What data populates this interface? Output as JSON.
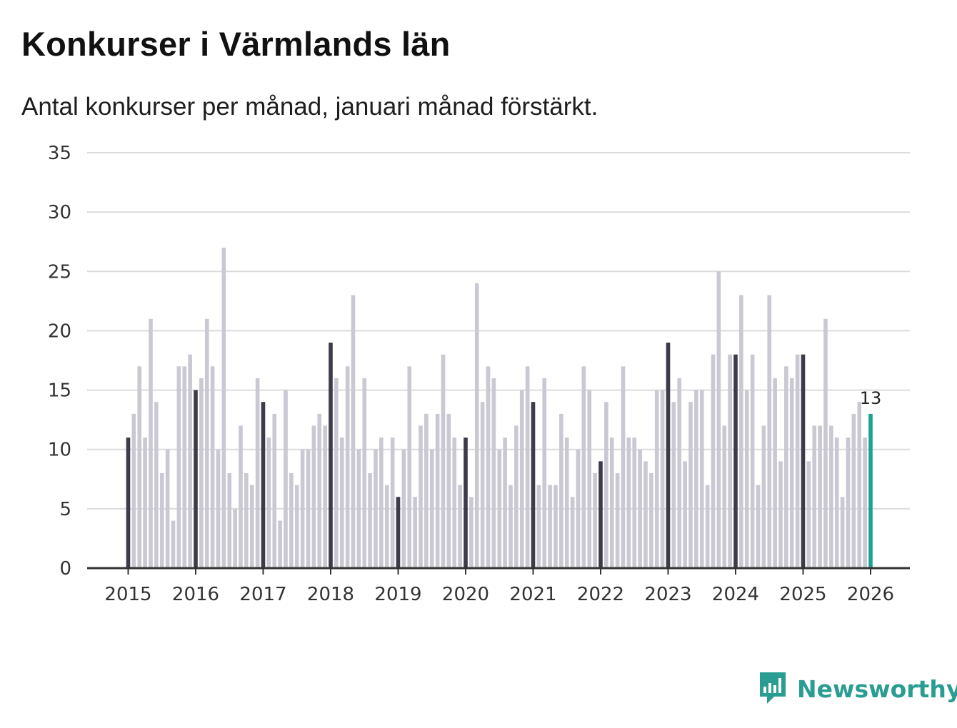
{
  "title": "Konkurser i Värmlands län",
  "subtitle": "Antal konkurser per månad, januari månad förstärkt.",
  "brand": {
    "name": "Newsworthy",
    "icon": "newsworthy-logo-icon"
  },
  "colors": {
    "bar": "#c9c8d3",
    "january": "#3c3b4a",
    "latest": "#1aa394",
    "grid": "#dcdcdc",
    "axis": "#333333",
    "brand": "#2a9d92"
  },
  "chart_data": {
    "type": "bar",
    "title": "Konkurser i Värmlands län",
    "ylabel": "",
    "xlabel": "",
    "ylim": [
      0,
      35
    ],
    "yticks": [
      0,
      5,
      10,
      15,
      20,
      25,
      30,
      35
    ],
    "xticks": [
      "2015",
      "2016",
      "2017",
      "2018",
      "2019",
      "2020",
      "2021",
      "2022",
      "2023",
      "2024",
      "2025",
      "2026"
    ],
    "start": "2015-01",
    "highlight": "january",
    "annotation": {
      "label": "13",
      "target": "2026-01"
    },
    "series": [
      {
        "name": "2015",
        "values": [
          11,
          13,
          17,
          11,
          21,
          14,
          8,
          10,
          4,
          17,
          17,
          18
        ]
      },
      {
        "name": "2016",
        "values": [
          15,
          16,
          21,
          17,
          10,
          27,
          8,
          5,
          12,
          8,
          7,
          16
        ]
      },
      {
        "name": "2017",
        "values": [
          14,
          11,
          13,
          4,
          15,
          8,
          7,
          10,
          10,
          12,
          13,
          12
        ]
      },
      {
        "name": "2018",
        "values": [
          19,
          16,
          11,
          17,
          23,
          10,
          16,
          8,
          10,
          11,
          7,
          11
        ]
      },
      {
        "name": "2019",
        "values": [
          6,
          10,
          17,
          6,
          12,
          13,
          10,
          13,
          18,
          13,
          11,
          7
        ]
      },
      {
        "name": "2020",
        "values": [
          11,
          6,
          24,
          14,
          17,
          16,
          10,
          11,
          7,
          12,
          15,
          17
        ]
      },
      {
        "name": "2021",
        "values": [
          14,
          7,
          16,
          7,
          7,
          13,
          11,
          6,
          10,
          17,
          15,
          8
        ]
      },
      {
        "name": "2022",
        "values": [
          9,
          14,
          11,
          8,
          17,
          11,
          11,
          10,
          9,
          8,
          15,
          15
        ]
      },
      {
        "name": "2023",
        "values": [
          19,
          14,
          16,
          9,
          14,
          15,
          15,
          7,
          18,
          25,
          12,
          18
        ]
      },
      {
        "name": "2024",
        "values": [
          18,
          23,
          15,
          18,
          7,
          12,
          23,
          16,
          9,
          17,
          16,
          18
        ]
      },
      {
        "name": "2025",
        "values": [
          18,
          9,
          12,
          12,
          21,
          12,
          11,
          6,
          11,
          13,
          14,
          11
        ]
      },
      {
        "name": "2026",
        "values": [
          13
        ]
      }
    ]
  }
}
